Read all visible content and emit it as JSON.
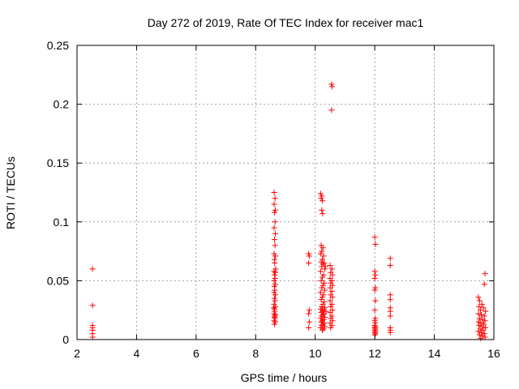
{
  "chart_data": {
    "type": "scatter",
    "title": "Day 272 of 2019, Rate Of TEC Index for receiver mac1",
    "xlabel": "GPS time / hours",
    "ylabel": "ROTI / TECUs",
    "xlim": [
      2,
      16
    ],
    "ylim": [
      0,
      0.25
    ],
    "xticks": [
      2,
      4,
      6,
      8,
      10,
      12,
      14,
      16
    ],
    "yticks": [
      0,
      0.05,
      0.1,
      0.15,
      0.2,
      0.25
    ],
    "xtick_labels": [
      "2",
      "4",
      "6",
      "8",
      "10",
      "12",
      "14",
      "16"
    ],
    "ytick_labels": [
      "0",
      "0.05",
      "0.1",
      "0.15",
      "0.2",
      "0.25"
    ],
    "grid": true,
    "marker": "+",
    "marker_color": "#ff0000",
    "series": [
      {
        "name": "ROTI",
        "points": [
          [
            2.52,
            0.06
          ],
          [
            2.52,
            0.029
          ],
          [
            2.52,
            0.012
          ],
          [
            2.52,
            0.01
          ],
          [
            2.52,
            0.008
          ],
          [
            2.52,
            0.005
          ],
          [
            2.52,
            0.002
          ],
          [
            8.62,
            0.125
          ],
          [
            8.65,
            0.12
          ],
          [
            8.62,
            0.115
          ],
          [
            8.66,
            0.11
          ],
          [
            8.63,
            0.108
          ],
          [
            8.65,
            0.1
          ],
          [
            8.62,
            0.095
          ],
          [
            8.66,
            0.09
          ],
          [
            8.63,
            0.085
          ],
          [
            8.65,
            0.08
          ],
          [
            8.62,
            0.073
          ],
          [
            8.66,
            0.071
          ],
          [
            8.63,
            0.068
          ],
          [
            8.64,
            0.065
          ],
          [
            8.62,
            0.058
          ],
          [
            8.66,
            0.057
          ],
          [
            8.63,
            0.055
          ],
          [
            8.65,
            0.052
          ],
          [
            8.62,
            0.05
          ],
          [
            8.66,
            0.047
          ],
          [
            8.63,
            0.045
          ],
          [
            8.64,
            0.042
          ],
          [
            8.62,
            0.04
          ],
          [
            8.66,
            0.038
          ],
          [
            8.63,
            0.035
          ],
          [
            8.65,
            0.033
          ],
          [
            8.62,
            0.03
          ],
          [
            8.66,
            0.028
          ],
          [
            8.63,
            0.026
          ],
          [
            8.64,
            0.024
          ],
          [
            8.62,
            0.022
          ],
          [
            8.66,
            0.021
          ],
          [
            8.63,
            0.019
          ],
          [
            8.65,
            0.018
          ],
          [
            8.62,
            0.016
          ],
          [
            8.66,
            0.015
          ],
          [
            8.63,
            0.013
          ],
          [
            8.64,
            0.02
          ],
          [
            8.61,
            0.027
          ],
          [
            8.67,
            0.06
          ],
          [
            9.78,
            0.073
          ],
          [
            9.8,
            0.071
          ],
          [
            9.78,
            0.065
          ],
          [
            9.8,
            0.025
          ],
          [
            9.78,
            0.022
          ],
          [
            9.8,
            0.015
          ],
          [
            9.78,
            0.01
          ],
          [
            10.18,
            0.124
          ],
          [
            10.22,
            0.122
          ],
          [
            10.2,
            0.12
          ],
          [
            10.24,
            0.118
          ],
          [
            10.22,
            0.11
          ],
          [
            10.25,
            0.107
          ],
          [
            10.2,
            0.08
          ],
          [
            10.26,
            0.078
          ],
          [
            10.22,
            0.075
          ],
          [
            10.18,
            0.073
          ],
          [
            10.28,
            0.071
          ],
          [
            10.24,
            0.068
          ],
          [
            10.2,
            0.066
          ],
          [
            10.3,
            0.065
          ],
          [
            10.26,
            0.064
          ],
          [
            10.22,
            0.062
          ],
          [
            10.32,
            0.06
          ],
          [
            10.18,
            0.058
          ],
          [
            10.28,
            0.055
          ],
          [
            10.24,
            0.053
          ],
          [
            10.2,
            0.05
          ],
          [
            10.3,
            0.048
          ],
          [
            10.26,
            0.046
          ],
          [
            10.22,
            0.044
          ],
          [
            10.32,
            0.042
          ],
          [
            10.18,
            0.04
          ],
          [
            10.28,
            0.038
          ],
          [
            10.24,
            0.036
          ],
          [
            10.2,
            0.034
          ],
          [
            10.3,
            0.032
          ],
          [
            10.26,
            0.03
          ],
          [
            10.22,
            0.028
          ],
          [
            10.32,
            0.027
          ],
          [
            10.18,
            0.026
          ],
          [
            10.28,
            0.025
          ],
          [
            10.24,
            0.024
          ],
          [
            10.2,
            0.023
          ],
          [
            10.3,
            0.022
          ],
          [
            10.26,
            0.021
          ],
          [
            10.22,
            0.02
          ],
          [
            10.32,
            0.019
          ],
          [
            10.18,
            0.018
          ],
          [
            10.28,
            0.017
          ],
          [
            10.24,
            0.016
          ],
          [
            10.2,
            0.015
          ],
          [
            10.3,
            0.014
          ],
          [
            10.26,
            0.013
          ],
          [
            10.22,
            0.012
          ],
          [
            10.32,
            0.011
          ],
          [
            10.18,
            0.01
          ],
          [
            10.28,
            0.009
          ],
          [
            10.24,
            0.008
          ],
          [
            10.34,
            0.062
          ],
          [
            10.36,
            0.024
          ],
          [
            10.55,
            0.217
          ],
          [
            10.57,
            0.215
          ],
          [
            10.55,
            0.195
          ],
          [
            10.5,
            0.063
          ],
          [
            10.56,
            0.06
          ],
          [
            10.52,
            0.057
          ],
          [
            10.58,
            0.055
          ],
          [
            10.5,
            0.052
          ],
          [
            10.56,
            0.05
          ],
          [
            10.52,
            0.048
          ],
          [
            10.58,
            0.046
          ],
          [
            10.5,
            0.044
          ],
          [
            10.56,
            0.041
          ],
          [
            10.52,
            0.038
          ],
          [
            10.58,
            0.036
          ],
          [
            10.5,
            0.033
          ],
          [
            10.56,
            0.03
          ],
          [
            10.52,
            0.028
          ],
          [
            10.58,
            0.025
          ],
          [
            10.5,
            0.023
          ],
          [
            10.56,
            0.02
          ],
          [
            10.52,
            0.018
          ],
          [
            10.58,
            0.016
          ],
          [
            10.5,
            0.014
          ],
          [
            10.56,
            0.012
          ],
          [
            10.52,
            0.01
          ],
          [
            12.0,
            0.087
          ],
          [
            12.02,
            0.081
          ],
          [
            12.0,
            0.058
          ],
          [
            12.02,
            0.055
          ],
          [
            12.0,
            0.052
          ],
          [
            12.02,
            0.044
          ],
          [
            12.0,
            0.042
          ],
          [
            12.02,
            0.033
          ],
          [
            12.0,
            0.025
          ],
          [
            12.02,
            0.018
          ],
          [
            12.0,
            0.016
          ],
          [
            12.02,
            0.014
          ],
          [
            12.0,
            0.012
          ],
          [
            12.02,
            0.011
          ],
          [
            12.0,
            0.01
          ],
          [
            12.02,
            0.009
          ],
          [
            12.0,
            0.008
          ],
          [
            12.02,
            0.007
          ],
          [
            12.0,
            0.006
          ],
          [
            12.02,
            0.005
          ],
          [
            12.0,
            0.004
          ],
          [
            12.52,
            0.069
          ],
          [
            12.52,
            0.063
          ],
          [
            12.52,
            0.038
          ],
          [
            12.52,
            0.034
          ],
          [
            12.52,
            0.027
          ],
          [
            12.52,
            0.024
          ],
          [
            12.52,
            0.02
          ],
          [
            12.52,
            0.01
          ],
          [
            12.52,
            0.008
          ],
          [
            12.52,
            0.006
          ],
          [
            15.7,
            0.056
          ],
          [
            15.68,
            0.047
          ],
          [
            15.48,
            0.036
          ],
          [
            15.52,
            0.033
          ],
          [
            15.6,
            0.03
          ],
          [
            15.5,
            0.028
          ],
          [
            15.65,
            0.027
          ],
          [
            15.55,
            0.025
          ],
          [
            15.72,
            0.024
          ],
          [
            15.48,
            0.022
          ],
          [
            15.58,
            0.021
          ],
          [
            15.68,
            0.02
          ],
          [
            15.52,
            0.018
          ],
          [
            15.62,
            0.017
          ],
          [
            15.7,
            0.016
          ],
          [
            15.48,
            0.015
          ],
          [
            15.56,
            0.014
          ],
          [
            15.66,
            0.013
          ],
          [
            15.5,
            0.012
          ],
          [
            15.6,
            0.011
          ],
          [
            15.72,
            0.01
          ],
          [
            15.54,
            0.009
          ],
          [
            15.64,
            0.008
          ],
          [
            15.48,
            0.007
          ],
          [
            15.58,
            0.006
          ],
          [
            15.68,
            0.005
          ],
          [
            15.52,
            0.004
          ],
          [
            15.62,
            0.003
          ],
          [
            15.7,
            0.002
          ],
          [
            15.56,
            0.001
          ]
        ]
      }
    ]
  }
}
